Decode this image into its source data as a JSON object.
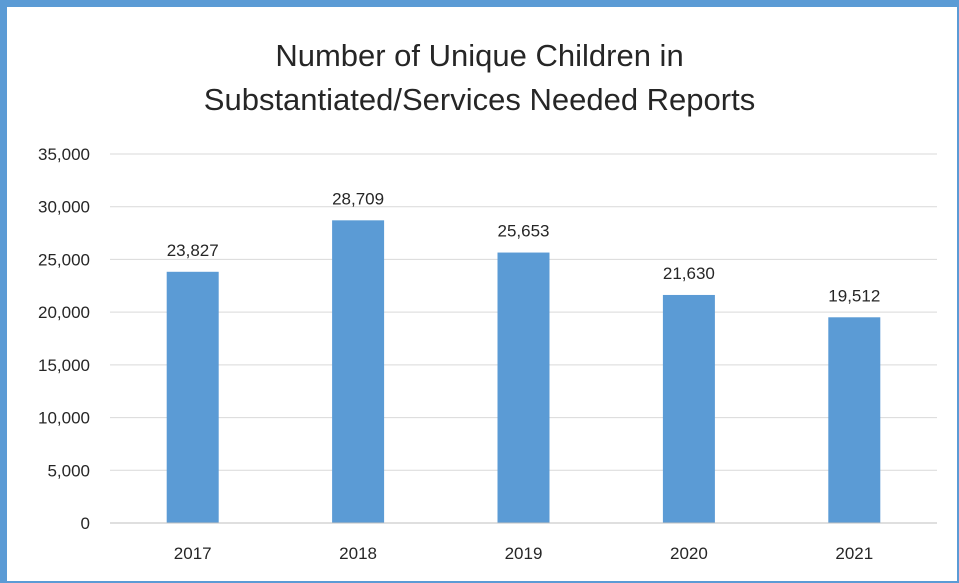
{
  "chart_data": {
    "type": "bar",
    "title_lines": [
      "Number of Unique Children in",
      "Substantiated/Services Needed Reports"
    ],
    "categories": [
      "2017",
      "2018",
      "2019",
      "2020",
      "2021"
    ],
    "values": [
      23827,
      28709,
      25653,
      21630,
      19512
    ],
    "data_labels": [
      "23,827",
      "28,709",
      "25,653",
      "21,630",
      "19,512"
    ],
    "y_ticks": [
      "0",
      "5,000",
      "10,000",
      "15,000",
      "20,000",
      "25,000",
      "30,000",
      "35,000"
    ],
    "ylim": [
      0,
      35000
    ],
    "y_step": 5000,
    "grid": true,
    "legend": "none",
    "xlabel": "",
    "ylabel": "",
    "bar_color": "#5b9bd5",
    "frame_color": "#5b9bd5"
  }
}
